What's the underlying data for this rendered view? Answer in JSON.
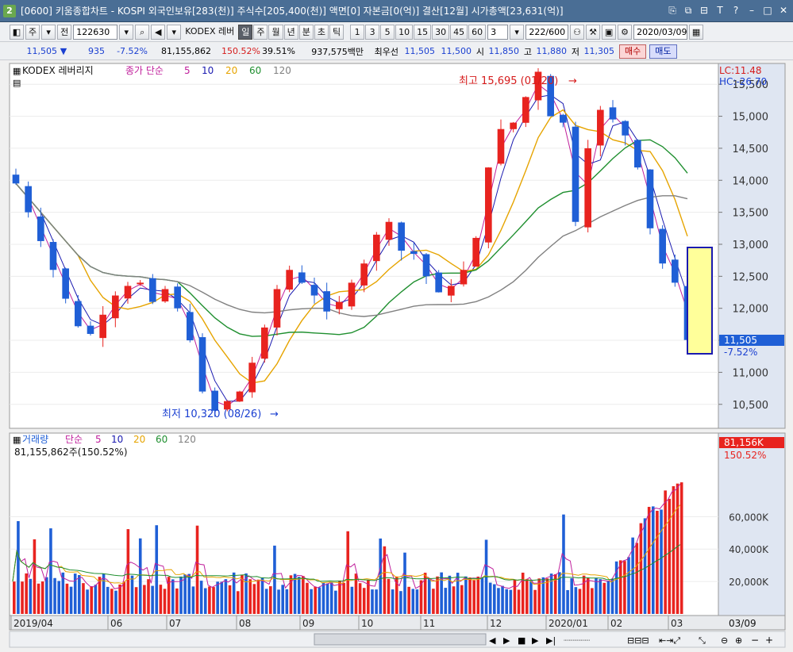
{
  "window": {
    "app_number": "2",
    "title": "[0600] 키움종합차트 - KOSPI 외국인보유[283(천)] 주식수[205,400(천)] 액면[0] 자본금[0(억)] 결산[12월] 시가총액[23,631(억)]"
  },
  "toolbar": {
    "period_button": "주",
    "prev_button": "전",
    "stock_code": "122630",
    "stock_name_label": "KODEX 레버",
    "interval_buttons": [
      "일",
      "주",
      "월",
      "년",
      "분",
      "초",
      "틱"
    ],
    "active_interval": "일",
    "minute_buttons": [
      "1",
      "3",
      "5",
      "10",
      "15",
      "30",
      "45",
      "60"
    ],
    "minute_select": "3",
    "count_value": "222/600",
    "date_value": "2020/03/09"
  },
  "quote": {
    "price": "11,505",
    "price_arrow": "▼",
    "change": "935",
    "change_pct": "-7.52%",
    "volume": "81,155,862",
    "volume_ratio": "150.52%",
    "turnover_pct": "39.51%",
    "amount": "937,575백만",
    "best_bid_label": "최우선",
    "best_bid_1": "11,505",
    "best_bid_2": "11,500",
    "open_label": "시",
    "open": "11,850",
    "high_label": "고",
    "high": "11,880",
    "low_label": "저",
    "low": "11,305",
    "buy_label": "매수",
    "sell_label": "매도"
  },
  "price_panel": {
    "stock_label": "KODEX 레버리지",
    "indicator_label": "종가 단순",
    "lc_label": "LC:11.48",
    "hc_label": "HC:-26.70",
    "current_price_tag": "11,505",
    "current_change_tag": "-7.52%",
    "high_annotation": "최고 15,695 (01/20)",
    "low_annotation": "최저 10,320 (08/26)"
  },
  "volume_panel": {
    "label": "거래량",
    "indicator_label": "단순",
    "volume_text": "81,155,862주(150.52%)",
    "current_volume_tag": "81,156K",
    "current_ratio_tag": "150.52%"
  },
  "xaxis": {
    "last_date_label": "03/09"
  },
  "colors": {
    "up": "#e8231f",
    "down": "#1f5fd6",
    "ma5": "#c0209c",
    "ma10": "#1a1ab0",
    "ma20": "#e6a400",
    "ma60": "#1f8f2f",
    "ma120": "#808080"
  },
  "chart_data": {
    "type": "candlestick",
    "title": "KODEX 레버리지",
    "x_range": [
      "2019-04",
      "2020-03-09"
    ],
    "x_tick_labels": [
      "2019/04",
      "06",
      "07",
      "08",
      "09",
      "10",
      "11",
      "12",
      "2020/01",
      "02",
      "03"
    ],
    "y_ticks": [
      10500,
      11000,
      11500,
      12000,
      12500,
      13000,
      13500,
      14000,
      14500,
      15000,
      15500
    ],
    "ylim": [
      10150,
      15800
    ],
    "moving_averages": [
      5,
      10,
      20,
      60,
      120
    ],
    "close_series": [
      13950,
      13500,
      13050,
      12600,
      12150,
      11720,
      11600,
      11900,
      12200,
      12350,
      12400,
      12100,
      12300,
      12000,
      11500,
      10700,
      10400,
      10550,
      10700,
      11150,
      11700,
      12300,
      12600,
      12400,
      12200,
      11950,
      12100,
      12400,
      12700,
      13150,
      13350,
      12900,
      12850,
      12500,
      12250,
      12350,
      12600,
      13100,
      14200,
      14800,
      14900,
      15300,
      15695,
      15000,
      14900,
      13350,
      14500,
      15100,
      14950,
      14700,
      14200,
      13250,
      12700,
      12400,
      11505
    ],
    "high": 15695,
    "high_date": "01/20",
    "low": 10320,
    "low_date": "08/26",
    "last_close": 11505,
    "last_change_pct": -7.52,
    "volume_yticks": [
      20000,
      40000,
      60000
    ],
    "volume_unit": "K",
    "volume_last": 81156
  }
}
